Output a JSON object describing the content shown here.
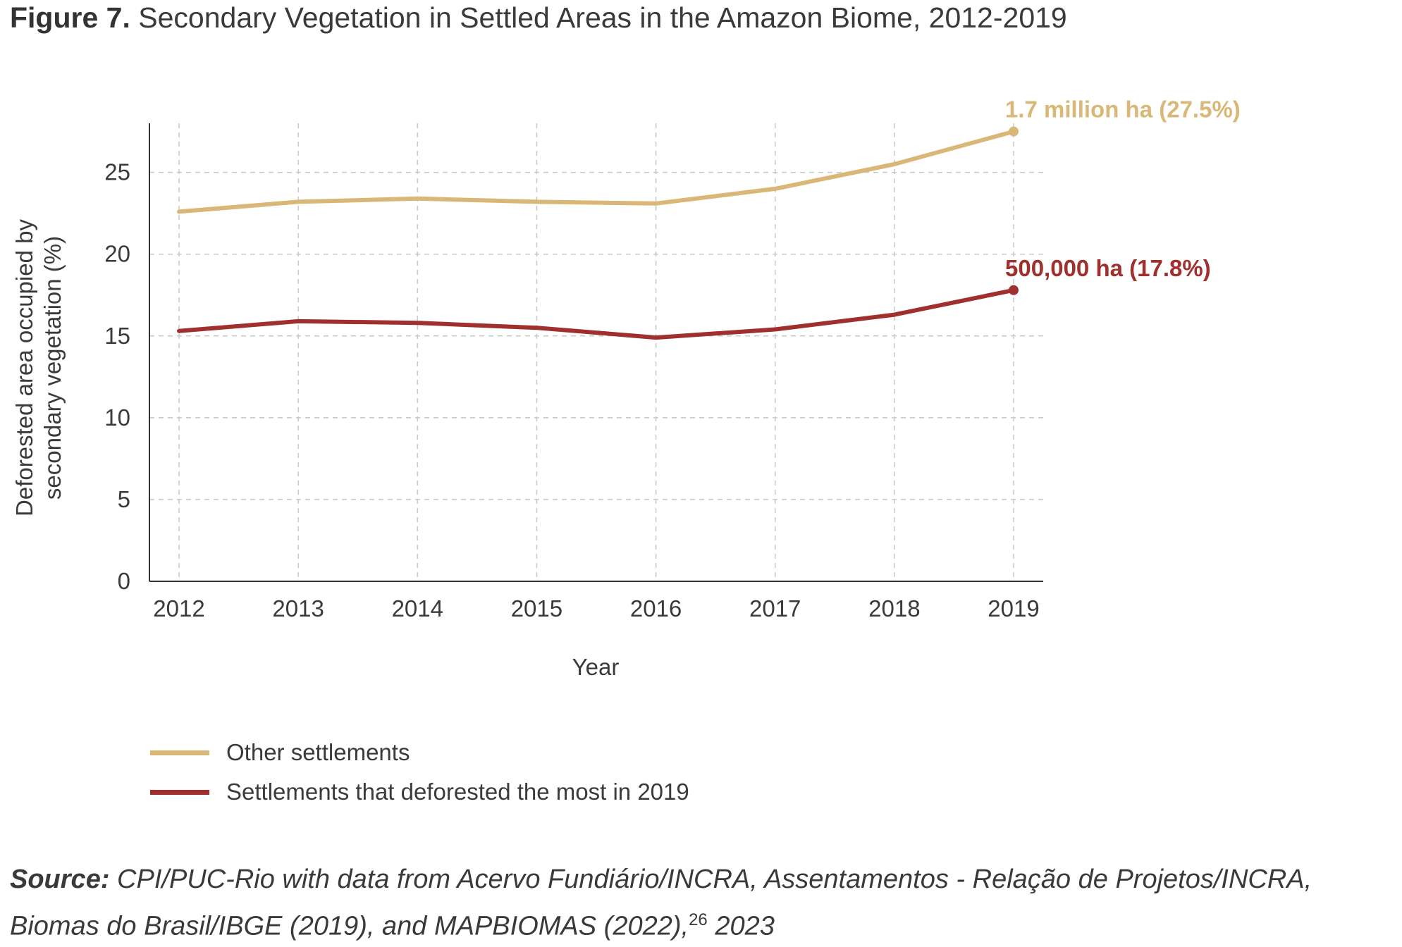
{
  "title": {
    "figure_label": "Figure 7.",
    "text": "Secondary Vegetation in Settled Areas in the Amazon Biome, 2012-2019"
  },
  "chart_data": {
    "type": "line",
    "x": [
      2012,
      2013,
      2014,
      2015,
      2016,
      2017,
      2018,
      2019
    ],
    "xlabel": "Year",
    "ylabel": [
      "Deforested area occupied by",
      "secondary vegetation (%)"
    ],
    "ylim": [
      0,
      28
    ],
    "yticks": [
      0,
      5,
      10,
      15,
      20,
      25
    ],
    "grid": true,
    "legend_position": "bottom-left",
    "series": [
      {
        "name": "Other settlements",
        "color": "#d9b877",
        "values": [
          22.6,
          23.2,
          23.4,
          23.2,
          23.1,
          24.0,
          25.5,
          27.5
        ],
        "end_label": "1.7 million ha (27.5%)"
      },
      {
        "name": "Settlements that deforested the most in 2019",
        "color": "#a0302e",
        "values": [
          15.3,
          15.9,
          15.8,
          15.5,
          14.9,
          15.4,
          16.3,
          17.8
        ],
        "end_label": "500,000 ha (17.8%)"
      }
    ]
  },
  "source": {
    "label": "Source:",
    "text": "CPI/PUC-Rio with data from Acervo Fundiário/INCRA, Assentamentos - Relação de Projetos/INCRA, Biomas do Brasil/IBGE (2019), and MAPBIOMAS (2022),",
    "footnote": "26",
    "year": "2023"
  }
}
